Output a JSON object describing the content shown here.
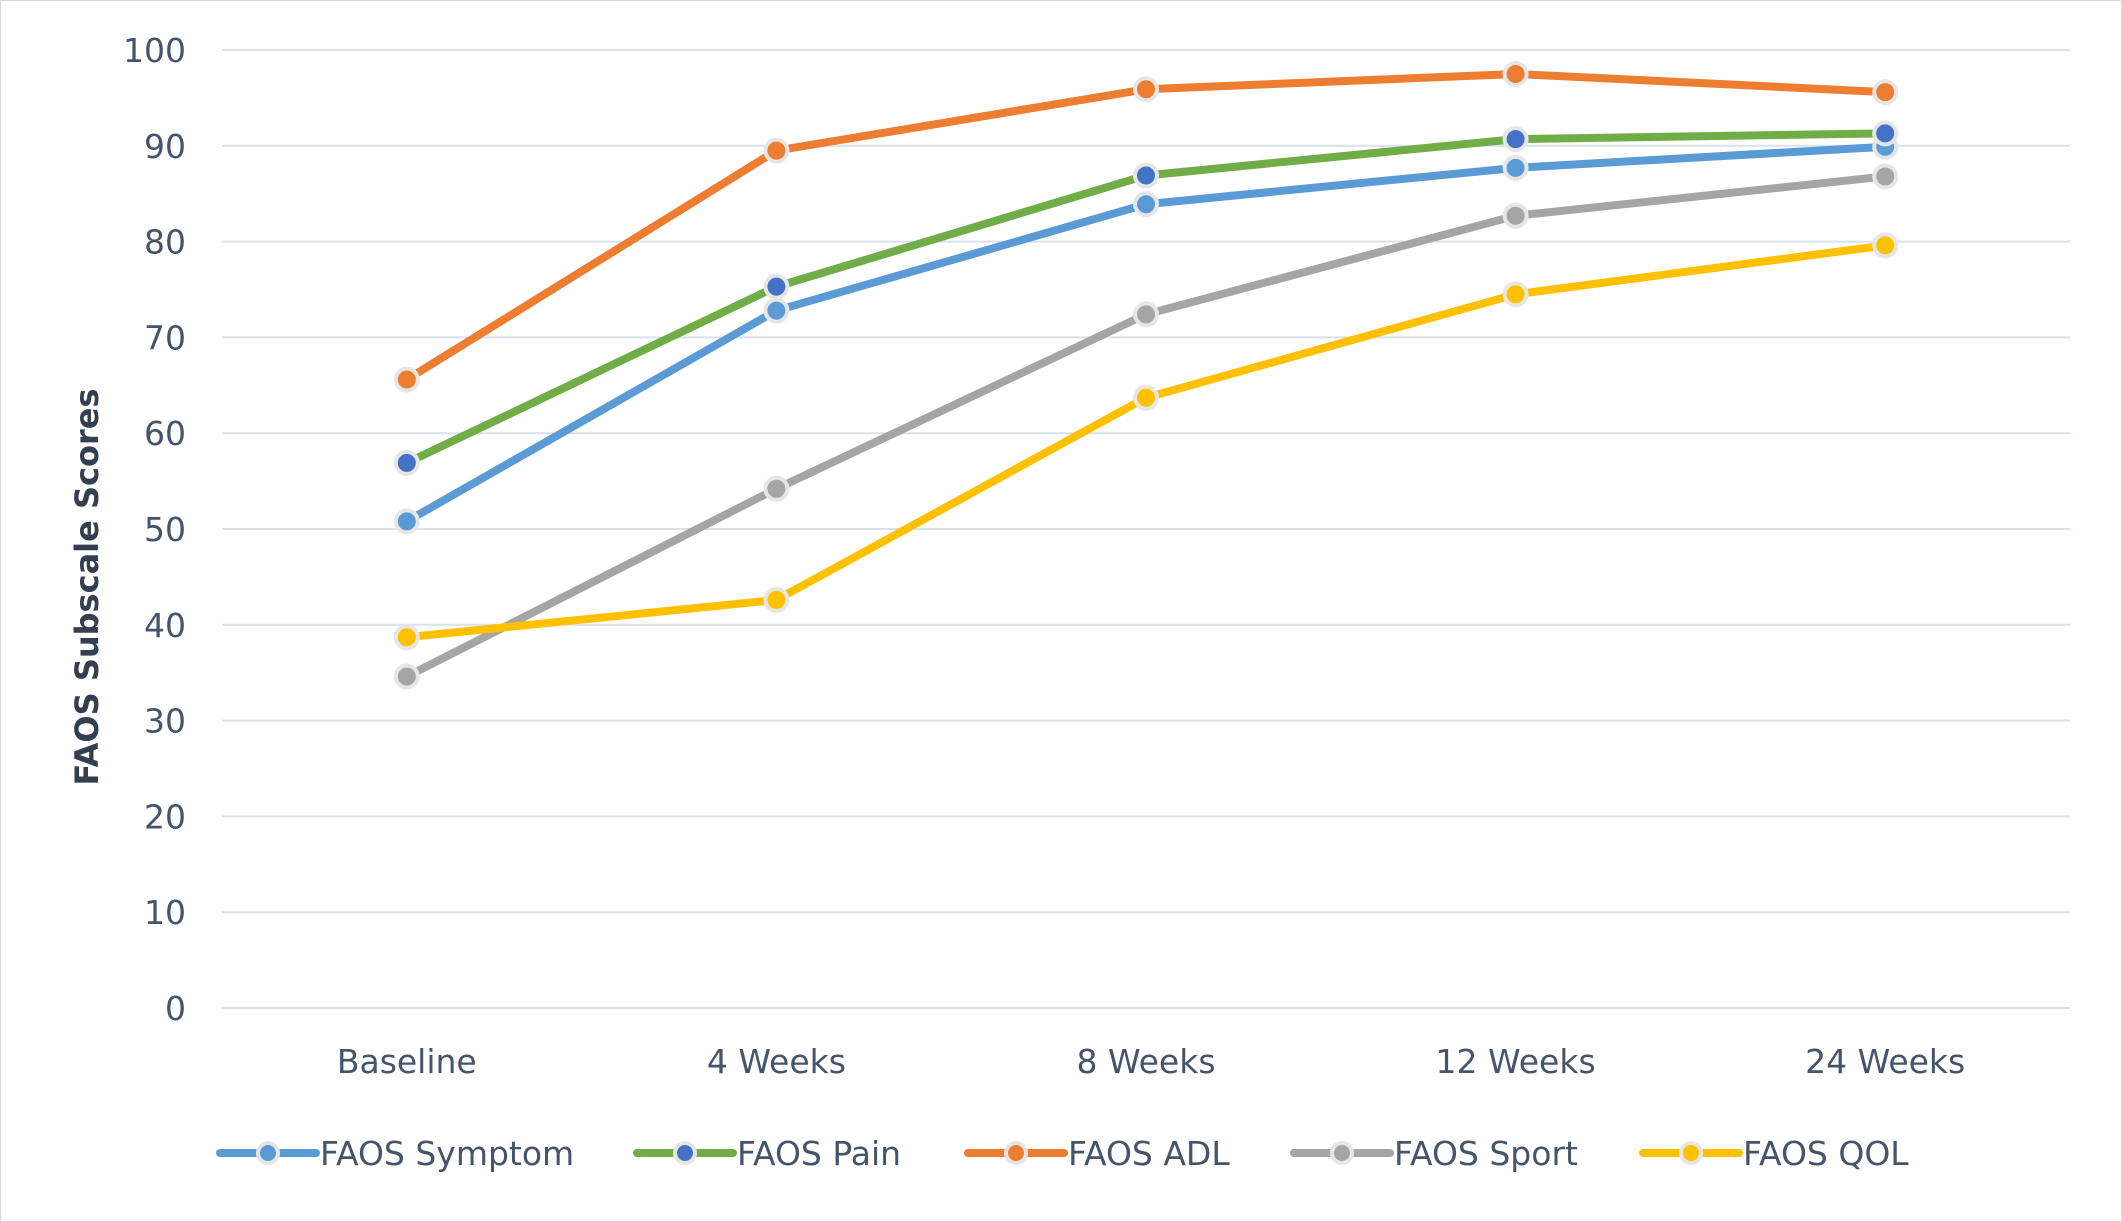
{
  "chart_data": {
    "type": "line",
    "title": "",
    "xlabel": "",
    "ylabel": "FAOS Subscale Scores",
    "ylim": [
      0,
      100
    ],
    "y_ticks": [
      0,
      10,
      20,
      30,
      40,
      50,
      60,
      70,
      80,
      90,
      100
    ],
    "grid": true,
    "legend_position": "bottom",
    "categories": [
      "Baseline",
      "4 Weeks",
      "8 Weeks",
      "12 Weeks",
      "24 Weeks"
    ],
    "series": [
      {
        "name": "FAOS Symptom",
        "color": "#5B9BD5",
        "marker_color": "#5B9BD5",
        "values": [
          50.8,
          72.8,
          83.9,
          87.7,
          89.9
        ]
      },
      {
        "name": "FAOS Pain",
        "color": "#70AD47",
        "marker_color": "#4472C4",
        "values": [
          56.9,
          75.3,
          86.9,
          90.7,
          91.3
        ]
      },
      {
        "name": "FAOS ADL",
        "color": "#ED7D31",
        "marker_color": "#ED7D31",
        "values": [
          65.6,
          89.5,
          95.9,
          97.5,
          95.6
        ]
      },
      {
        "name": "FAOS Sport",
        "color": "#A5A5A5",
        "marker_color": "#A5A5A5",
        "values": [
          34.6,
          54.2,
          72.4,
          82.7,
          86.8
        ]
      },
      {
        "name": "FAOS QOL",
        "color": "#FFC000",
        "marker_color": "#FFC000",
        "values": [
          38.7,
          42.6,
          63.7,
          74.5,
          79.6
        ]
      }
    ]
  }
}
